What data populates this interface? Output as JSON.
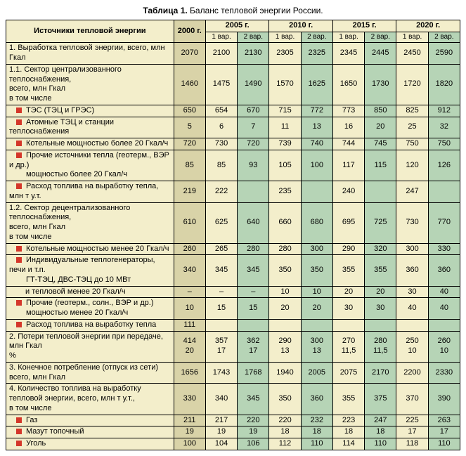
{
  "title_label": "Таблица 1.",
  "title_text": "Баланс тепловой энергии России.",
  "header": {
    "sources": "Источники тепловой энергии",
    "y2000": "2000 г.",
    "y2005": "2005 г.",
    "y2010": "2010 г.",
    "y2015": "2015 г.",
    "y2020": "2020 г.",
    "v1": "1 вар.",
    "v2": "2 вар."
  },
  "rows": [
    {
      "type": "plain",
      "label": "1. Выработка тепловой энергии, всего, млн Гкал",
      "vals": [
        "2070",
        "2100",
        "2130",
        "2305",
        "2325",
        "2345",
        "2445",
        "2450",
        "2590"
      ]
    },
    {
      "type": "multi",
      "lines": [
        "1.1. Сектор централизованного теплоснабжения,",
        "всего, млн Гкал",
        "в том числе"
      ],
      "vals": [
        "1460",
        "1475",
        "1490",
        "1570",
        "1625",
        "1650",
        "1730",
        "1720",
        "1820"
      ]
    },
    {
      "type": "bullet",
      "label": "ТЭС (ТЭЦ и ГРЭС)",
      "vals": [
        "650",
        "654",
        "670",
        "715",
        "772",
        "773",
        "850",
        "825",
        "912"
      ]
    },
    {
      "type": "bullet",
      "label": "Атомные ТЭЦ и станции теплоснабжения",
      "vals": [
        "5",
        "6",
        "7",
        "11",
        "13",
        "16",
        "20",
        "25",
        "32"
      ]
    },
    {
      "type": "bullet",
      "label": "Котельные мощностью более 20 Гкал/ч",
      "vals": [
        "720",
        "730",
        "720",
        "739",
        "740",
        "744",
        "745",
        "750",
        "750"
      ]
    },
    {
      "type": "bullet2",
      "lines": [
        "Прочие источники тепла (геотерм., ВЭР и др.)",
        "мощностью более 20 Гкал/ч"
      ],
      "vals": [
        "85",
        "85",
        "93",
        "105",
        "100",
        "117",
        "115",
        "120",
        "126"
      ]
    },
    {
      "type": "bullet",
      "label": "Расход топлива на выработку тепла, млн т у.т.",
      "vals": [
        "219",
        "222",
        "",
        "235",
        "",
        "240",
        "",
        "247",
        ""
      ]
    },
    {
      "type": "multi",
      "lines": [
        "1.2. Сектор децентрализованного теплоснабжения,",
        "всего, млн Гкал",
        "в том числе"
      ],
      "vals": [
        "610",
        "625",
        "640",
        "660",
        "680",
        "695",
        "725",
        "730",
        "770"
      ]
    },
    {
      "type": "bullet",
      "label": "Котельные мощностью менее 20 Гкал/ч",
      "vals": [
        "260",
        "265",
        "280",
        "280",
        "300",
        "290",
        "320",
        "300",
        "330"
      ]
    },
    {
      "type": "bullet2",
      "lines": [
        "Индивидуальные теплогенераторы, печи и т.п.",
        "ГТ-ТЭЦ, ДВС-ТЭЦ до 10 МВт"
      ],
      "vals": [
        "340",
        "345",
        "345",
        "350",
        "350",
        "355",
        "355",
        "360",
        "360"
      ]
    },
    {
      "type": "sub",
      "label": "и тепловой менее 20 Гкал/ч",
      "vals": [
        "–",
        "–",
        "–",
        "10",
        "10",
        "20",
        "20",
        "30",
        "40"
      ]
    },
    {
      "type": "bullet2",
      "lines": [
        "Прочие (геотерм., солн., ВЭР и др.)",
        "мощностью менее 20 Гкал/ч"
      ],
      "vals": [
        "10",
        "15",
        "15",
        "20",
        "20",
        "30",
        "30",
        "40",
        "40"
      ]
    },
    {
      "type": "bullet",
      "label": "Расход топлива на выработку тепла",
      "vals": [
        "111",
        "",
        "",
        "",
        "",
        "",
        "",
        "",
        ""
      ]
    },
    {
      "type": "double",
      "lines": [
        "2. Потери тепловой энергии при передаче, млн Гкал",
        "%"
      ],
      "vals": [
        [
          "414",
          "357",
          "362",
          "290",
          "300",
          "270",
          "280",
          "250",
          "260"
        ],
        [
          "20",
          "17",
          "17",
          "13",
          "13",
          "11,5",
          "11,5",
          "10",
          "10"
        ]
      ]
    },
    {
      "type": "multi",
      "lines": [
        "3. Конечное потребление (отпуск из сети)",
        "всего, млн Гкал"
      ],
      "vals": [
        "1656",
        "1743",
        "1768",
        "1940",
        "2005",
        "2075",
        "2170",
        "2200",
        "2330"
      ]
    },
    {
      "type": "multi",
      "lines": [
        "4. Количество топлива на выработку",
        "тепловой энергии, всего, млн т у.т.,",
        "в том числе"
      ],
      "vals": [
        "330",
        "340",
        "345",
        "350",
        "360",
        "355",
        "375",
        "370",
        "390"
      ]
    },
    {
      "type": "bullet",
      "label": "Газ",
      "vals": [
        "211",
        "217",
        "220",
        "220",
        "232",
        "223",
        "247",
        "225",
        "263"
      ]
    },
    {
      "type": "bullet",
      "label": "Мазут топочный",
      "vals": [
        "19",
        "19",
        "19",
        "18",
        "18",
        "18",
        "18",
        "17",
        "17"
      ]
    },
    {
      "type": "bullet",
      "label": "Уголь",
      "vals": [
        "100",
        "104",
        "106",
        "112",
        "110",
        "114",
        "110",
        "118",
        "110"
      ]
    }
  ],
  "colors": {
    "base_bg": "#f3eecb",
    "col2000": "#d9d3a8",
    "var2": "#b6d4b6",
    "bullet": "#d4372a"
  }
}
